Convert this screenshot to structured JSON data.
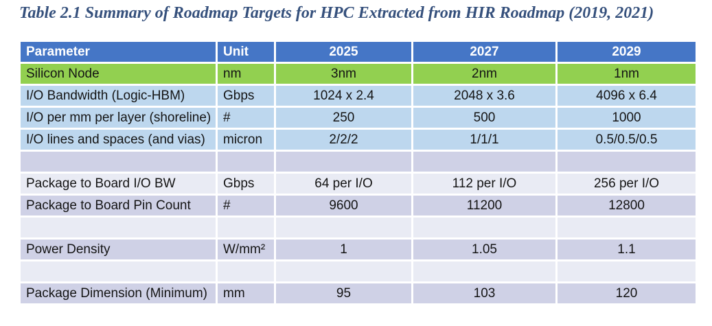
{
  "title": "Table 2.1 Summary of Roadmap Targets for HPC Extracted from HIR Roadmap (2019, 2021)",
  "colors": {
    "title_text": "#35507C",
    "header_blue": "#4576C6",
    "green_row": "#92D050",
    "light_blue_row": "#BDD7EE",
    "lavender_dark_row": "#CFD1E6",
    "lavender_light_row": "#E9EBF4"
  },
  "table": {
    "columns": [
      "Parameter",
      "Unit",
      "2025",
      "2027",
      "2029"
    ],
    "rows": [
      {
        "band": "green",
        "cells": [
          "Silicon Node",
          "nm",
          "3nm",
          "2nm",
          "1nm"
        ]
      },
      {
        "band": "blue",
        "cells": [
          "I/O Bandwidth (Logic-HBM)",
          "Gbps",
          "1024 x 2.4",
          "2048 x 3.6",
          "4096 x 6.4"
        ]
      },
      {
        "band": "blue",
        "cells": [
          "I/O per mm per layer (shoreline)",
          "#",
          "250",
          "500",
          "1000"
        ]
      },
      {
        "band": "blue",
        "cells": [
          "I/O lines and spaces (and vias)",
          "micron",
          "2/2/2",
          "1/1/1",
          "0.5/0.5/0.5"
        ]
      },
      {
        "band": "dark",
        "cells": [
          "",
          "",
          "",
          "",
          ""
        ]
      },
      {
        "band": "light",
        "cells": [
          "Package to Board I/O BW",
          "Gbps",
          "64 per I/O",
          "112 per I/O",
          "256 per I/O"
        ]
      },
      {
        "band": "dark",
        "cells": [
          "Package to Board Pin Count",
          "#",
          "9600",
          "11200",
          "12800"
        ]
      },
      {
        "band": "light",
        "cells": [
          "",
          "",
          "",
          "",
          ""
        ]
      },
      {
        "band": "dark",
        "cells": [
          "Power Density",
          "W/mm²",
          "1",
          "1.05",
          "1.1"
        ]
      },
      {
        "band": "light",
        "cells": [
          "",
          "",
          "",
          "",
          ""
        ]
      },
      {
        "band": "dark",
        "cells": [
          "Package Dimension (Minimum)",
          "mm",
          "95",
          "103",
          "120"
        ]
      }
    ]
  }
}
